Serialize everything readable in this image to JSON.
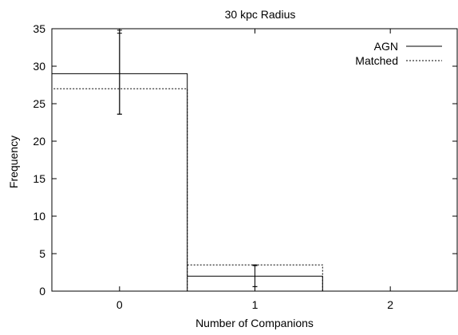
{
  "chart_data": {
    "type": "bar",
    "title": "30 kpc Radius",
    "xlabel": "Number of Companions",
    "ylabel": "Frequency",
    "xlim": [
      -0.5,
      2.5
    ],
    "ylim": [
      0,
      35
    ],
    "xticks": [
      0,
      1,
      2
    ],
    "yticks": [
      0,
      5,
      10,
      15,
      20,
      25,
      30,
      35
    ],
    "categories": [
      "0",
      "1",
      "2"
    ],
    "grid": false,
    "legend_position": "top-right",
    "series": [
      {
        "name": "AGN",
        "line_style": "solid",
        "color": "#000000",
        "values": [
          29,
          2,
          0
        ],
        "errors": [
          [
            23.6,
            34.4
          ],
          [
            0.6,
            3.4
          ],
          [
            0,
            0
          ]
        ]
      },
      {
        "name": "Matched",
        "line_style": "dotted",
        "color": "#000000",
        "values": [
          27,
          3.5,
          0
        ],
        "errors": [
          [
            23.6,
            34.8
          ],
          [
            0.6,
            3.5
          ],
          [
            0,
            0
          ]
        ]
      }
    ]
  }
}
